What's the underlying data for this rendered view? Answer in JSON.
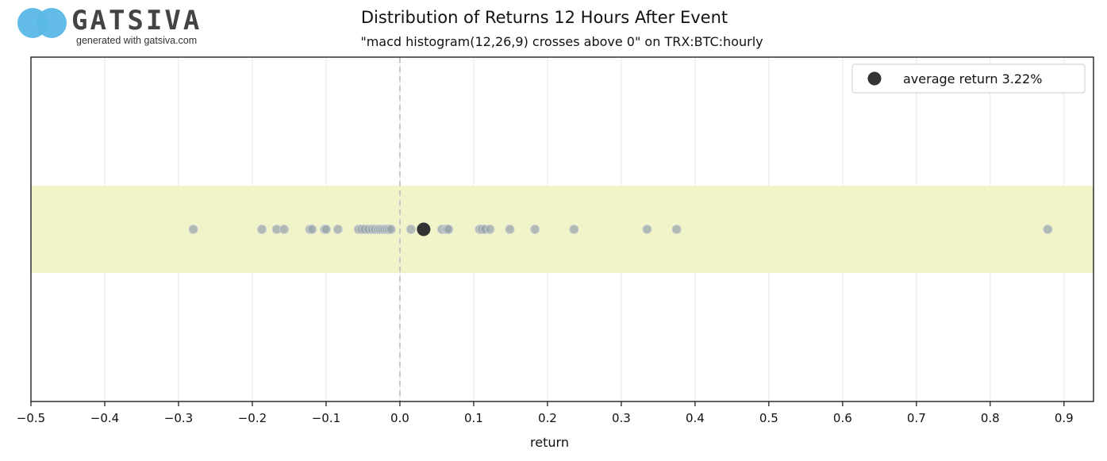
{
  "logo": {
    "wordmark": "GATSIVA",
    "tagline": "generated with gatsiva.com",
    "color": "#5bb8e6"
  },
  "chart_data": {
    "type": "scatter",
    "title": "Distribution of Returns 12 Hours After Event",
    "subtitle": "\"macd histogram(12,26,9) crosses above 0\" on TRX:BTC:hourly",
    "xlabel": "return",
    "ylabel": "",
    "xlim": [
      -0.5,
      0.94
    ],
    "xticks": [
      -0.5,
      -0.4,
      -0.3,
      -0.2,
      -0.1,
      0.0,
      0.1,
      0.2,
      0.3,
      0.4,
      0.5,
      0.6,
      0.7,
      0.8,
      0.9
    ],
    "xtick_labels": [
      "−0.5",
      "−0.4",
      "−0.3",
      "−0.2",
      "−0.1",
      "0.0",
      "0.1",
      "0.2",
      "0.3",
      "0.4",
      "0.5",
      "0.6",
      "0.7",
      "0.8",
      "0.9"
    ],
    "grid": true,
    "reference_line_x": 0.0,
    "band_color": "#f1f3c9",
    "point_color": "#9aa6ab",
    "average_color": "#333333",
    "returns": [
      -0.28,
      -0.187,
      -0.167,
      -0.157,
      -0.122,
      -0.119,
      -0.102,
      -0.1,
      -0.084,
      -0.056,
      -0.052,
      -0.048,
      -0.043,
      -0.038,
      -0.034,
      -0.03,
      -0.027,
      -0.024,
      -0.021,
      -0.018,
      -0.015,
      -0.012,
      0.015,
      0.057,
      0.062,
      0.064,
      0.066,
      0.108,
      0.111,
      0.115,
      0.122,
      0.149,
      0.183,
      0.236,
      0.335,
      0.375,
      0.878
    ],
    "average_return": 0.0322,
    "legend": {
      "label": "average return 3.22%",
      "position": "top-right"
    }
  }
}
